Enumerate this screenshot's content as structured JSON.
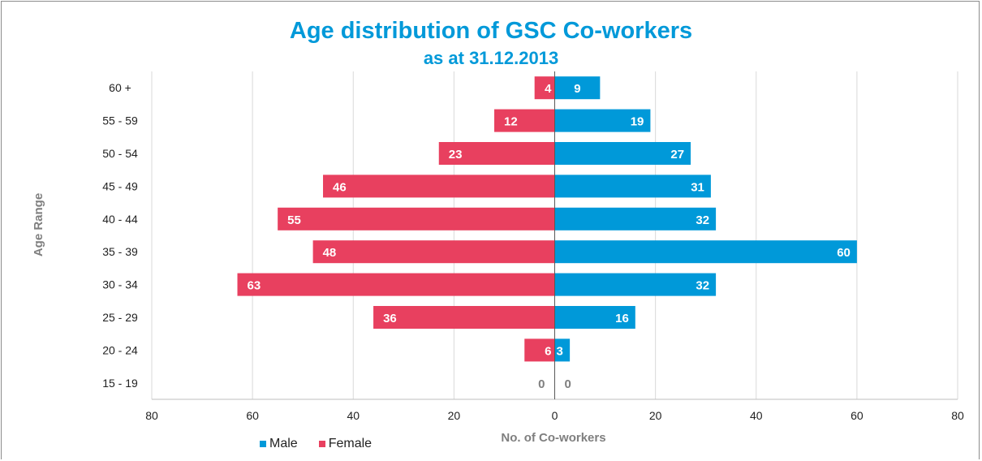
{
  "chart_data": {
    "type": "bar",
    "orientation": "horizontal",
    "title": "Age distribution of GSC Co-workers",
    "subtitle": "as at 31.12.2013",
    "xlabel": "No. of Co-workers",
    "ylabel": "Age Range",
    "categories": [
      "60 +",
      "55 - 59",
      "50 - 54",
      "45 - 49",
      "40 - 44",
      "35 - 39",
      "30 - 34",
      "25 - 29",
      "20 - 24",
      "15 - 19"
    ],
    "series": [
      {
        "name": "Male",
        "color": "#0099d9",
        "direction": "right",
        "values": [
          9,
          19,
          27,
          31,
          32,
          60,
          32,
          16,
          3,
          0
        ]
      },
      {
        "name": "Female",
        "color": "#e8405f",
        "direction": "left",
        "values": [
          4,
          12,
          23,
          46,
          55,
          48,
          63,
          36,
          6,
          0
        ]
      }
    ],
    "xlim": [
      -80,
      80
    ],
    "xticks": [
      -80,
      -60,
      -40,
      -20,
      0,
      20,
      40,
      60,
      80
    ],
    "xtick_labels": [
      "80",
      "60",
      "40",
      "20",
      "0",
      "20",
      "40",
      "60",
      "80"
    ],
    "grid": true,
    "legend_position": "bottom-left",
    "data_labels": true
  }
}
